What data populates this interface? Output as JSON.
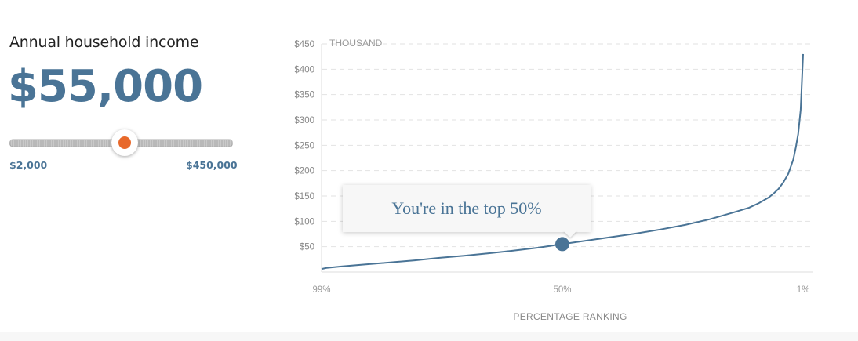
{
  "income": {
    "label": "Annual household income",
    "value": "$55,000"
  },
  "slider": {
    "min_label": "$2,000",
    "max_label": "$450,000",
    "min": 2000,
    "max": 450000,
    "value": 55000,
    "accent_color": "#e8692b"
  },
  "tooltip": {
    "text": "You're in the top 50%"
  },
  "colors": {
    "primary": "#4a7496",
    "accent": "#e8692b"
  },
  "chart_data": {
    "type": "line",
    "unit_label": "THOUSAND",
    "xlabel": "PERCENTAGE RANKING",
    "ylabel": "",
    "ylim": [
      0,
      450
    ],
    "y_ticks": [
      "$50",
      "$100",
      "$150",
      "$200",
      "$250",
      "$300",
      "$350",
      "$400",
      "$450"
    ],
    "y_tick_values": [
      50,
      100,
      150,
      200,
      250,
      300,
      350,
      400,
      450
    ],
    "x_ticks": [
      "99%",
      "50%",
      "1%"
    ],
    "x_tick_values": [
      99,
      50,
      1
    ],
    "grid": true,
    "series": [
      {
        "x": [
          99,
          98,
          95,
          90,
          85,
          80,
          75,
          70,
          65,
          60,
          55,
          50,
          45,
          40,
          35,
          30,
          25,
          20,
          15,
          12,
          10,
          8,
          7,
          6,
          5,
          4,
          3,
          2.5,
          2,
          1.5,
          1
        ],
        "values": [
          6,
          8,
          11,
          15,
          19,
          23,
          28,
          32,
          37,
          42,
          48,
          55,
          62,
          69,
          76,
          84,
          93,
          104,
          118,
          127,
          136,
          147,
          155,
          164,
          177,
          194,
          222,
          245,
          272,
          320,
          430
        ]
      }
    ],
    "marker": {
      "x": 50,
      "y": 55
    }
  }
}
